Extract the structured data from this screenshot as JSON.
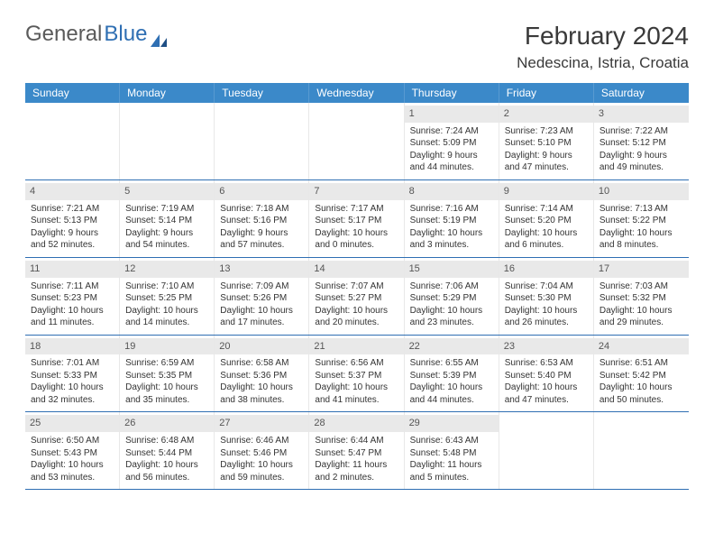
{
  "logo": {
    "part1": "General",
    "part2": "Blue"
  },
  "title": "February 2024",
  "location": "Nedescina, Istria, Croatia",
  "colors": {
    "header_bg": "#3b89c9",
    "header_text": "#ffffff",
    "divider": "#2f6fb3",
    "daynum_bg": "#e9e9e9",
    "text": "#333333",
    "logo_gray": "#5a5a5a",
    "logo_blue": "#2f6fb3"
  },
  "weekdays": [
    "Sunday",
    "Monday",
    "Tuesday",
    "Wednesday",
    "Thursday",
    "Friday",
    "Saturday"
  ],
  "days": [
    {
      "n": 1,
      "sunrise": "7:24 AM",
      "sunset": "5:09 PM",
      "dl1": "Daylight: 9 hours",
      "dl2": "and 44 minutes."
    },
    {
      "n": 2,
      "sunrise": "7:23 AM",
      "sunset": "5:10 PM",
      "dl1": "Daylight: 9 hours",
      "dl2": "and 47 minutes."
    },
    {
      "n": 3,
      "sunrise": "7:22 AM",
      "sunset": "5:12 PM",
      "dl1": "Daylight: 9 hours",
      "dl2": "and 49 minutes."
    },
    {
      "n": 4,
      "sunrise": "7:21 AM",
      "sunset": "5:13 PM",
      "dl1": "Daylight: 9 hours",
      "dl2": "and 52 minutes."
    },
    {
      "n": 5,
      "sunrise": "7:19 AM",
      "sunset": "5:14 PM",
      "dl1": "Daylight: 9 hours",
      "dl2": "and 54 minutes."
    },
    {
      "n": 6,
      "sunrise": "7:18 AM",
      "sunset": "5:16 PM",
      "dl1": "Daylight: 9 hours",
      "dl2": "and 57 minutes."
    },
    {
      "n": 7,
      "sunrise": "7:17 AM",
      "sunset": "5:17 PM",
      "dl1": "Daylight: 10 hours",
      "dl2": "and 0 minutes."
    },
    {
      "n": 8,
      "sunrise": "7:16 AM",
      "sunset": "5:19 PM",
      "dl1": "Daylight: 10 hours",
      "dl2": "and 3 minutes."
    },
    {
      "n": 9,
      "sunrise": "7:14 AM",
      "sunset": "5:20 PM",
      "dl1": "Daylight: 10 hours",
      "dl2": "and 6 minutes."
    },
    {
      "n": 10,
      "sunrise": "7:13 AM",
      "sunset": "5:22 PM",
      "dl1": "Daylight: 10 hours",
      "dl2": "and 8 minutes."
    },
    {
      "n": 11,
      "sunrise": "7:11 AM",
      "sunset": "5:23 PM",
      "dl1": "Daylight: 10 hours",
      "dl2": "and 11 minutes."
    },
    {
      "n": 12,
      "sunrise": "7:10 AM",
      "sunset": "5:25 PM",
      "dl1": "Daylight: 10 hours",
      "dl2": "and 14 minutes."
    },
    {
      "n": 13,
      "sunrise": "7:09 AM",
      "sunset": "5:26 PM",
      "dl1": "Daylight: 10 hours",
      "dl2": "and 17 minutes."
    },
    {
      "n": 14,
      "sunrise": "7:07 AM",
      "sunset": "5:27 PM",
      "dl1": "Daylight: 10 hours",
      "dl2": "and 20 minutes."
    },
    {
      "n": 15,
      "sunrise": "7:06 AM",
      "sunset": "5:29 PM",
      "dl1": "Daylight: 10 hours",
      "dl2": "and 23 minutes."
    },
    {
      "n": 16,
      "sunrise": "7:04 AM",
      "sunset": "5:30 PM",
      "dl1": "Daylight: 10 hours",
      "dl2": "and 26 minutes."
    },
    {
      "n": 17,
      "sunrise": "7:03 AM",
      "sunset": "5:32 PM",
      "dl1": "Daylight: 10 hours",
      "dl2": "and 29 minutes."
    },
    {
      "n": 18,
      "sunrise": "7:01 AM",
      "sunset": "5:33 PM",
      "dl1": "Daylight: 10 hours",
      "dl2": "and 32 minutes."
    },
    {
      "n": 19,
      "sunrise": "6:59 AM",
      "sunset": "5:35 PM",
      "dl1": "Daylight: 10 hours",
      "dl2": "and 35 minutes."
    },
    {
      "n": 20,
      "sunrise": "6:58 AM",
      "sunset": "5:36 PM",
      "dl1": "Daylight: 10 hours",
      "dl2": "and 38 minutes."
    },
    {
      "n": 21,
      "sunrise": "6:56 AM",
      "sunset": "5:37 PM",
      "dl1": "Daylight: 10 hours",
      "dl2": "and 41 minutes."
    },
    {
      "n": 22,
      "sunrise": "6:55 AM",
      "sunset": "5:39 PM",
      "dl1": "Daylight: 10 hours",
      "dl2": "and 44 minutes."
    },
    {
      "n": 23,
      "sunrise": "6:53 AM",
      "sunset": "5:40 PM",
      "dl1": "Daylight: 10 hours",
      "dl2": "and 47 minutes."
    },
    {
      "n": 24,
      "sunrise": "6:51 AM",
      "sunset": "5:42 PM",
      "dl1": "Daylight: 10 hours",
      "dl2": "and 50 minutes."
    },
    {
      "n": 25,
      "sunrise": "6:50 AM",
      "sunset": "5:43 PM",
      "dl1": "Daylight: 10 hours",
      "dl2": "and 53 minutes."
    },
    {
      "n": 26,
      "sunrise": "6:48 AM",
      "sunset": "5:44 PM",
      "dl1": "Daylight: 10 hours",
      "dl2": "and 56 minutes."
    },
    {
      "n": 27,
      "sunrise": "6:46 AM",
      "sunset": "5:46 PM",
      "dl1": "Daylight: 10 hours",
      "dl2": "and 59 minutes."
    },
    {
      "n": 28,
      "sunrise": "6:44 AM",
      "sunset": "5:47 PM",
      "dl1": "Daylight: 11 hours",
      "dl2": "and 2 minutes."
    },
    {
      "n": 29,
      "sunrise": "6:43 AM",
      "sunset": "5:48 PM",
      "dl1": "Daylight: 11 hours",
      "dl2": "and 5 minutes."
    }
  ],
  "labels": {
    "sunrise": "Sunrise: ",
    "sunset": "Sunset: "
  },
  "layout": {
    "first_blank_cells": 4,
    "last_blank_cells": 2
  }
}
